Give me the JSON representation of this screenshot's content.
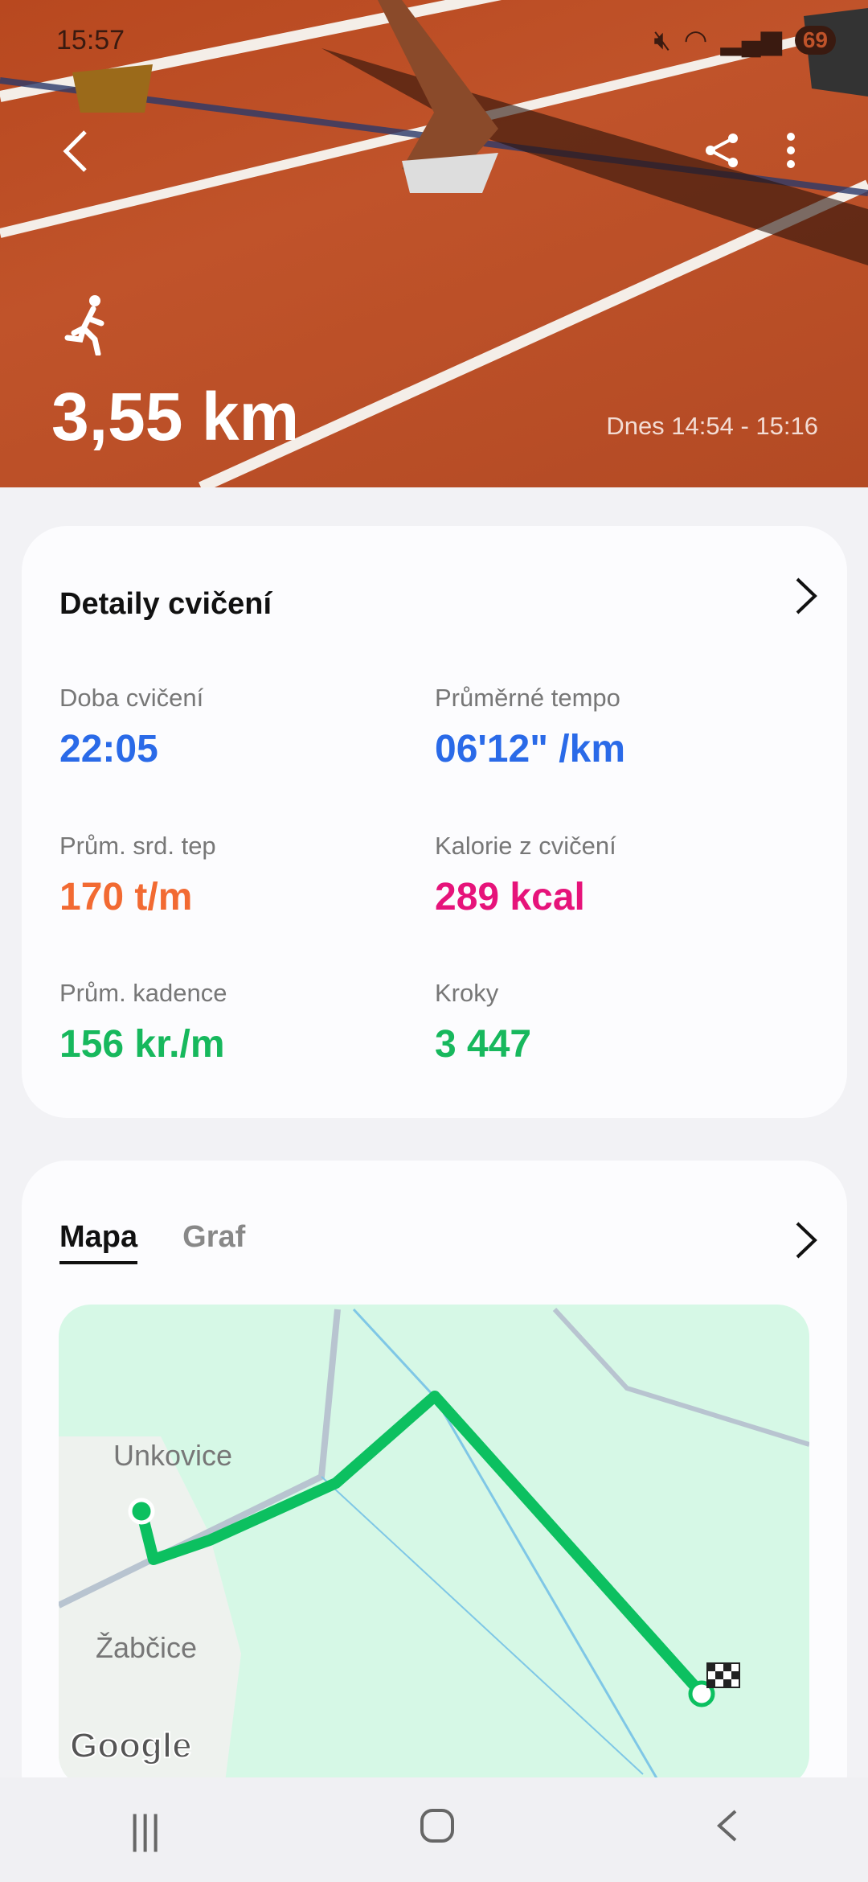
{
  "status_bar": {
    "time": "15:57",
    "battery": "69"
  },
  "header": {
    "distance": "3,55 km",
    "time_range": "Dnes 14:54 - 15:16",
    "activity_icon": "running-icon"
  },
  "details": {
    "title": "Detaily cvičení",
    "stats": [
      {
        "label": "Doba cvičení",
        "value": "22:05",
        "color": "#2a6ae8"
      },
      {
        "label": "Průměrné tempo",
        "value": "06'12\" /km",
        "color": "#2a6ae8"
      },
      {
        "label": "Prům. srd. tep",
        "value": "170 t/m",
        "color": "#f26a32"
      },
      {
        "label": "Kalorie z cvičení",
        "value": "289 kcal",
        "color": "#e6137a"
      },
      {
        "label": "Prům. kadence",
        "value": "156 kr./m",
        "color": "#17b85d"
      },
      {
        "label": "Kroky",
        "value": "3 447",
        "color": "#17b85d"
      }
    ]
  },
  "map_card": {
    "tabs": [
      "Mapa",
      "Graf"
    ],
    "places": [
      "Unkovice",
      "Žabčice"
    ],
    "attribution": "Google",
    "route_color": "#0cc060"
  }
}
